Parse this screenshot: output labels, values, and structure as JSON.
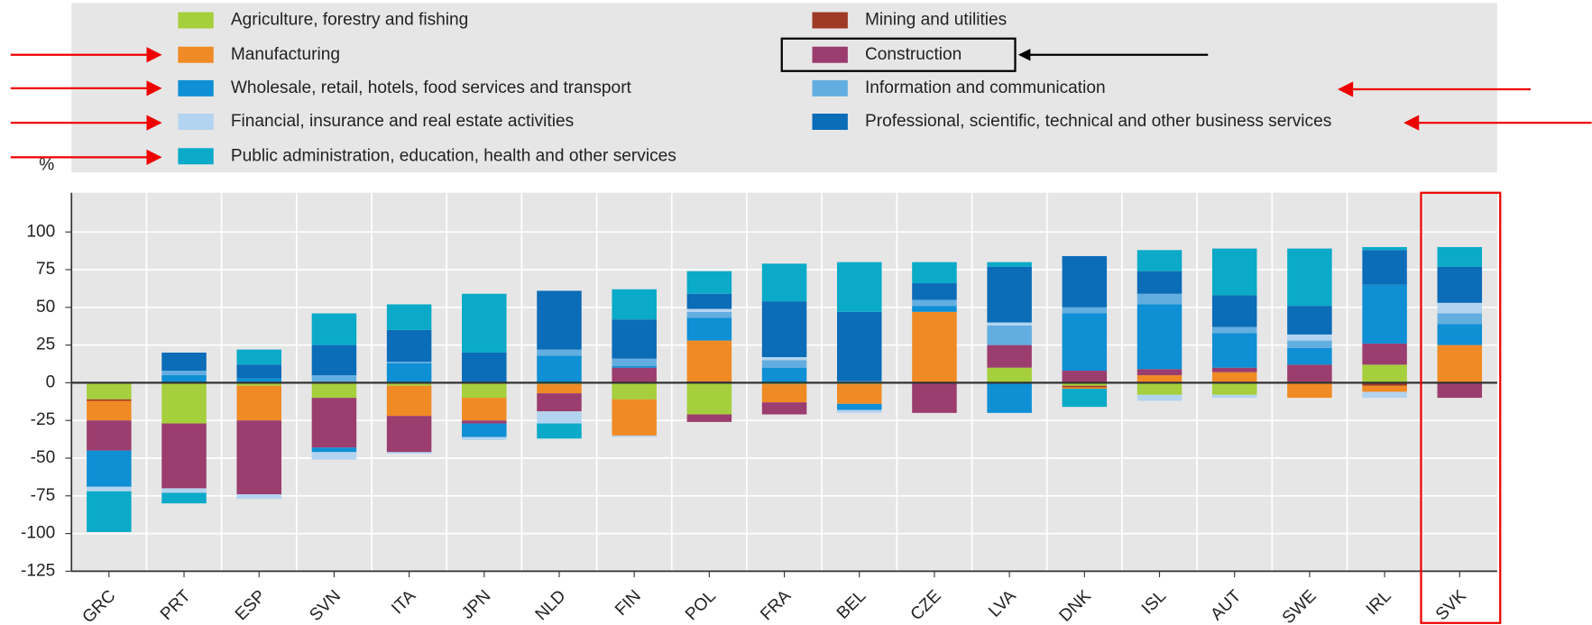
{
  "chart_data": {
    "type": "stacked-bar",
    "y_label": "%",
    "categories": [
      "GRC",
      "PRT",
      "ESP",
      "SVN",
      "ITA",
      "JPN",
      "NLD",
      "FIN",
      "POL",
      "FRA",
      "BEL",
      "CZE",
      "LVA",
      "DNK",
      "ISL",
      "AUT",
      "SWE",
      "IRL",
      "SVK"
    ],
    "series": [
      {
        "name": "Agriculture, forestry and fishing",
        "color": "#a5cf3c",
        "values": [
          -11,
          -27,
          -2,
          -10,
          -2,
          -10,
          -1,
          -11,
          -21,
          -1,
          -1,
          0,
          10,
          -2,
          -8,
          -8,
          0,
          12,
          0
        ]
      },
      {
        "name": "Mining and utilities",
        "color": "#9e3a26",
        "values": [
          -1,
          0,
          0,
          0,
          0,
          0,
          0,
          0,
          1,
          0,
          0,
          0,
          0,
          -1,
          0,
          0,
          0,
          -2,
          0
        ]
      },
      {
        "name": "Manufacturing",
        "color": "#f08a24",
        "values": [
          -13,
          0,
          -23,
          0,
          -20,
          -15,
          -6,
          -24,
          27,
          -12,
          -13,
          47,
          0,
          -1,
          5,
          7,
          -10,
          -4,
          25
        ]
      },
      {
        "name": "Construction",
        "color": "#9b3d6e",
        "values": [
          -20,
          -43,
          -49,
          -33,
          -24,
          -2,
          -12,
          10,
          -5,
          -8,
          0,
          -20,
          15,
          8,
          4,
          3,
          12,
          14,
          -10
        ]
      },
      {
        "name": "Wholesale, retail, hotels, food services and transport",
        "color": "#0f8fd4",
        "values": [
          -24,
          5,
          3,
          -3,
          13,
          -9,
          18,
          1,
          15,
          10,
          -4,
          4,
          -20,
          38,
          43,
          23,
          11,
          39,
          14
        ]
      },
      {
        "name": "Information and communication",
        "color": "#63aee0",
        "values": [
          0,
          3,
          0,
          5,
          1,
          0,
          4,
          5,
          4,
          5,
          1,
          4,
          13,
          4,
          7,
          4,
          5,
          0,
          7
        ]
      },
      {
        "name": "Financial, insurance and real estate activities",
        "color": "#b2d4f0",
        "values": [
          -3,
          -3,
          -3,
          -5,
          -1,
          -2,
          -8,
          -1,
          2,
          2,
          -2,
          0,
          2,
          0,
          -4,
          -2,
          4,
          -4,
          7
        ]
      },
      {
        "name": "Professional, scientific, technical and other business services",
        "color": "#0b6cb8",
        "values": [
          0,
          12,
          9,
          20,
          21,
          20,
          39,
          26,
          10,
          37,
          46,
          11,
          37,
          34,
          15,
          21,
          19,
          23,
          24
        ]
      },
      {
        "name": "Public administration, education, health and other services",
        "color": "#0aaac8",
        "values": [
          -27,
          -7,
          10,
          21,
          17,
          39,
          -10,
          20,
          15,
          25,
          33,
          14,
          3,
          -12,
          14,
          31,
          38,
          2,
          13
        ]
      }
    ],
    "ylim": [
      -125,
      126
    ],
    "yticks": [
      100,
      75,
      50,
      25,
      0,
      -25,
      -50,
      -75,
      -100,
      -125
    ],
    "grid": true
  }
}
